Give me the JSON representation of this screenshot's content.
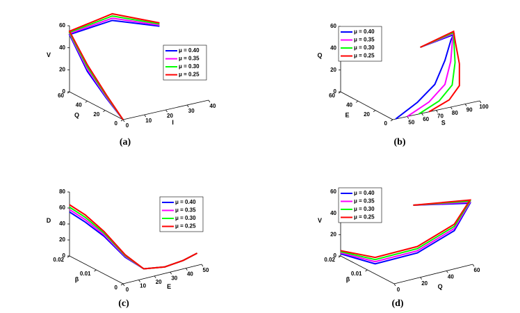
{
  "chart_data": [
    {
      "type": "line3d",
      "caption": "(a)",
      "xlabel": "I",
      "ylabel": "Q",
      "zlabel": "V",
      "xlim": [
        0,
        40
      ],
      "ylim": [
        0,
        60
      ],
      "zlim": [
        0,
        60
      ],
      "xticks": [
        0,
        10,
        20,
        30,
        40
      ],
      "yticks": [
        0,
        20,
        40,
        60
      ],
      "zticks": [
        0,
        20,
        40,
        60
      ],
      "legend": "upper right",
      "series": [
        {
          "name": "μ = 0.40",
          "color": "#0000ff",
          "x": [
            0,
            0.5,
            0,
            0,
            20,
            40
          ],
          "y": [
            0,
            20,
            40,
            60,
            60,
            55
          ],
          "z": [
            0,
            11,
            27,
            52,
            56,
            44
          ]
        },
        {
          "name": "μ = 0.35",
          "color": "#ff00ff",
          "x": [
            0,
            0.5,
            0,
            0,
            20,
            40
          ],
          "y": [
            0,
            20,
            40,
            60,
            60,
            55
          ],
          "z": [
            0,
            12,
            29,
            53,
            58,
            45
          ]
        },
        {
          "name": "μ = 0.30",
          "color": "#00ff00",
          "x": [
            0,
            0.5,
            0,
            0,
            20,
            40
          ],
          "y": [
            0,
            20,
            40,
            60,
            60,
            55
          ],
          "z": [
            0,
            13,
            31,
            54,
            60,
            46
          ]
        },
        {
          "name": "μ = 0.25",
          "color": "#ff0000",
          "x": [
            0,
            0.5,
            0,
            0,
            20,
            40
          ],
          "y": [
            0,
            20,
            40,
            60,
            60,
            55
          ],
          "z": [
            0,
            14,
            33,
            55,
            62,
            47
          ]
        }
      ]
    },
    {
      "type": "line3d",
      "caption": "(b)",
      "xlabel": "S",
      "ylabel": "E",
      "zlabel": "Q",
      "xlim": [
        40,
        100
      ],
      "ylim": [
        0,
        60
      ],
      "zlim": [
        0,
        60
      ],
      "xticks": [
        50,
        60,
        70,
        80,
        90,
        100
      ],
      "yticks": [
        0,
        20,
        40,
        60
      ],
      "zticks": [
        0,
        20,
        40,
        60
      ],
      "legend": "upper left",
      "series": [
        {
          "name": "μ = 0.40",
          "color": "#0000ff",
          "x": [
            42,
            60,
            75,
            88,
            97,
            100,
            80
          ],
          "y": [
            0,
            5,
            10,
            20,
            28,
            30,
            35
          ],
          "z": [
            0,
            8,
            18,
            32,
            45,
            48,
            40
          ]
        },
        {
          "name": "μ = 0.35",
          "color": "#ff00ff",
          "x": [
            50,
            68,
            82,
            92,
            98,
            100,
            80
          ],
          "y": [
            0,
            5,
            10,
            20,
            28,
            30,
            35
          ],
          "z": [
            0,
            6,
            16,
            30,
            44,
            49,
            40
          ]
        },
        {
          "name": "μ = 0.30",
          "color": "#00ff00",
          "x": [
            58,
            75,
            87,
            95,
            99,
            100,
            80
          ],
          "y": [
            0,
            5,
            10,
            20,
            28,
            30,
            35
          ],
          "z": [
            0,
            5,
            14,
            28,
            43,
            50,
            40
          ]
        },
        {
          "name": "μ = 0.25",
          "color": "#ff0000",
          "x": [
            65,
            82,
            92,
            98,
            100,
            100,
            80
          ],
          "y": [
            0,
            5,
            10,
            20,
            28,
            30,
            35
          ],
          "z": [
            0,
            4,
            12,
            26,
            42,
            51,
            40
          ]
        }
      ]
    },
    {
      "type": "line3d",
      "caption": "(c)",
      "xlabel": "E",
      "ylabel": "β",
      "zlabel": "D",
      "xlim": [
        0,
        50
      ],
      "ylim": [
        0,
        0.02
      ],
      "zlim": [
        0,
        80
      ],
      "xticks": [
        0,
        10,
        20,
        30,
        40,
        50
      ],
      "yticks": [
        0,
        0.01,
        0.02
      ],
      "zticks": [
        0,
        20,
        40,
        60,
        80
      ],
      "legend": "upper right",
      "series": [
        {
          "name": "μ = 0.40",
          "color": "#0000ff",
          "x": [
            0,
            5,
            10,
            15,
            20,
            30,
            40,
            48
          ],
          "y": [
            0.02,
            0.017,
            0.013,
            0.008,
            0.004,
            0.002,
            0.001,
            0.0005
          ],
          "z": [
            55,
            45,
            32,
            12,
            2,
            3,
            8,
            14
          ]
        },
        {
          "name": "μ = 0.35",
          "color": "#ff00ff",
          "x": [
            0,
            5,
            10,
            15,
            20,
            30,
            40,
            48
          ],
          "y": [
            0.02,
            0.017,
            0.013,
            0.008,
            0.004,
            0.002,
            0.001,
            0.0005
          ],
          "z": [
            58,
            48,
            34,
            13,
            2,
            3,
            8,
            14
          ]
        },
        {
          "name": "μ = 0.30",
          "color": "#00ff00",
          "x": [
            0,
            5,
            10,
            15,
            20,
            30,
            40,
            48
          ],
          "y": [
            0.02,
            0.017,
            0.013,
            0.008,
            0.004,
            0.002,
            0.001,
            0.0005
          ],
          "z": [
            61,
            51,
            36,
            14,
            2,
            3,
            8,
            14
          ]
        },
        {
          "name": "μ = 0.25",
          "color": "#ff0000",
          "x": [
            0,
            5,
            10,
            15,
            20,
            30,
            40,
            48
          ],
          "y": [
            0.02,
            0.017,
            0.013,
            0.008,
            0.004,
            0.002,
            0.001,
            0.0005
          ],
          "z": [
            64,
            54,
            38,
            15,
            2,
            3,
            8,
            14
          ]
        }
      ]
    },
    {
      "type": "line3d",
      "caption": "(d)",
      "xlabel": "Q",
      "ylabel": "β",
      "zlabel": "V",
      "xlim": [
        0,
        60
      ],
      "ylim": [
        0,
        0.02
      ],
      "zlim": [
        0,
        60
      ],
      "xticks": [
        0,
        20,
        40,
        60
      ],
      "yticks": [
        0.01,
        0.02
      ],
      "zticks": [
        0,
        20,
        40,
        60
      ],
      "legend": "upper left",
      "series": [
        {
          "name": "μ = 0.40",
          "color": "#0000ff",
          "x": [
            0,
            10,
            30,
            50,
            60,
            35
          ],
          "y": [
            0.02,
            0.012,
            0.006,
            0.002,
            0.001,
            0.01
          ],
          "z": [
            2,
            0,
            12,
            32,
            56,
            50
          ]
        },
        {
          "name": "μ = 0.35",
          "color": "#ff00ff",
          "x": [
            0,
            10,
            30,
            50,
            60,
            35
          ],
          "y": [
            0.02,
            0.012,
            0.006,
            0.002,
            0.001,
            0.01
          ],
          "z": [
            3,
            2,
            14,
            34,
            57,
            50
          ]
        },
        {
          "name": "μ = 0.30",
          "color": "#00ff00",
          "x": [
            0,
            10,
            30,
            50,
            60,
            35
          ],
          "y": [
            0.02,
            0.012,
            0.006,
            0.002,
            0.001,
            0.01
          ],
          "z": [
            4,
            4,
            16,
            36,
            58,
            50
          ]
        },
        {
          "name": "μ = 0.25",
          "color": "#ff0000",
          "x": [
            0,
            10,
            30,
            50,
            60,
            35
          ],
          "y": [
            0.02,
            0.012,
            0.006,
            0.002,
            0.001,
            0.01
          ],
          "z": [
            5,
            6,
            18,
            38,
            59,
            50
          ]
        }
      ]
    }
  ]
}
